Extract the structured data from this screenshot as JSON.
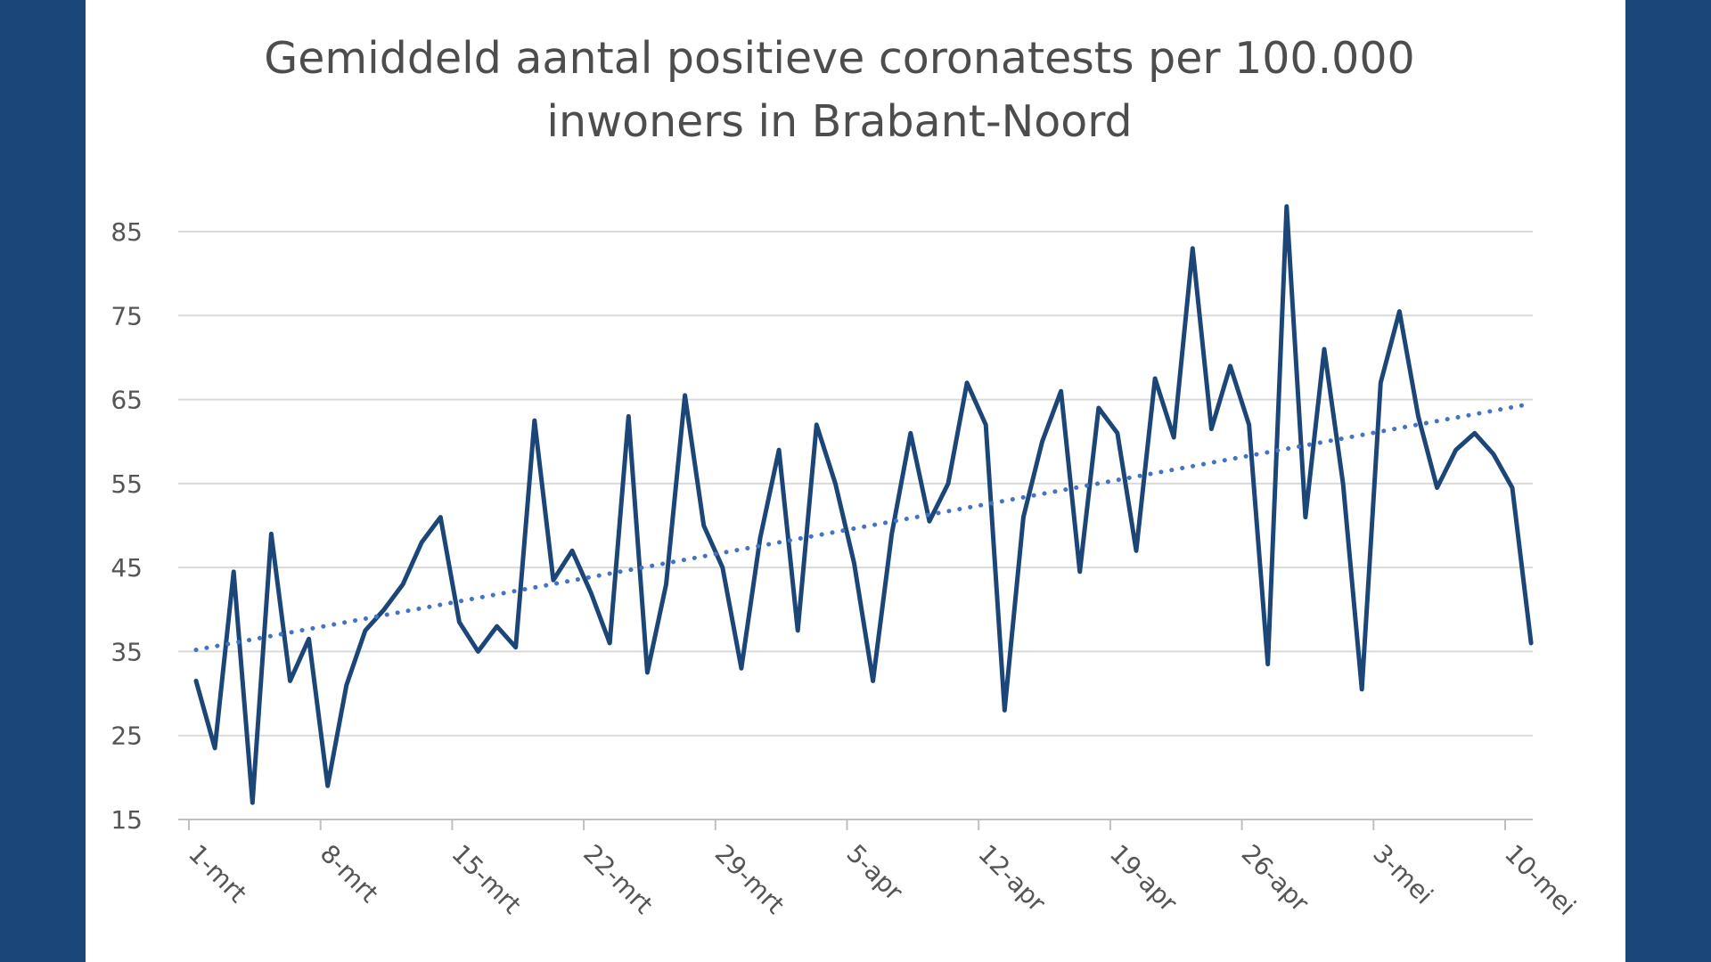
{
  "chart_data": {
    "type": "line",
    "title": "Gemiddeld aantal positieve coronatests per 100.000 inwoners in Brabant-Noord",
    "title_lines": [
      "Gemiddeld aantal positieve coronatests per 100.000",
      "inwoners in Brabant-Noord"
    ],
    "xlabel": "",
    "ylabel": "",
    "ylim": [
      15,
      85
    ],
    "yticks": [
      15,
      25,
      35,
      45,
      55,
      65,
      75,
      85
    ],
    "grid": true,
    "legend": "none",
    "x_tick_labels": [
      "1-mrt",
      "8-mrt",
      "15-mrt",
      "22-mrt",
      "29-mrt",
      "5-apr",
      "12-apr",
      "19-apr",
      "26-apr",
      "3-mei",
      "10-mei"
    ],
    "x_tick_days": [
      0,
      7,
      14,
      21,
      28,
      35,
      42,
      49,
      56,
      63,
      70
    ],
    "x_days_max": 72,
    "series": [
      {
        "line_color": "#1c4677",
        "style": "solid",
        "x_day": [
          0,
          1,
          2,
          3,
          4,
          5,
          6,
          7,
          8,
          9,
          10,
          11,
          12,
          13,
          14,
          15,
          16,
          17,
          18,
          19,
          20,
          21,
          22,
          23,
          24,
          25,
          26,
          27,
          28,
          29,
          30,
          31,
          32,
          33,
          34,
          35,
          36,
          37,
          38,
          39,
          40,
          41,
          42,
          43,
          44,
          45,
          46,
          47,
          48,
          49,
          50,
          51,
          52,
          53,
          54,
          55,
          56,
          57,
          58,
          59,
          60,
          61,
          62,
          63,
          64,
          65,
          66,
          67,
          68,
          69,
          70,
          71
        ],
        "values": [
          31.5,
          23.5,
          44.5,
          17,
          49,
          31.5,
          36.5,
          19,
          31,
          37.5,
          40,
          43,
          48,
          51,
          38.5,
          35,
          38,
          35.5,
          62.5,
          43.5,
          47,
          42,
          36,
          63,
          32.5,
          43,
          65.5,
          50,
          45,
          33,
          48.5,
          59,
          37.5,
          62,
          55,
          45.5,
          31.5,
          49,
          61,
          50.5,
          55,
          67,
          62,
          28,
          51,
          60,
          66,
          44.5,
          64,
          61,
          47,
          67.5,
          60.5,
          83,
          61.5,
          69,
          62,
          33.5,
          88,
          51,
          71,
          55,
          30.5,
          67,
          75.5,
          63,
          54.5,
          59,
          61,
          58.5,
          54.5,
          36
        ]
      },
      {
        "line_color": "#4472c4",
        "style": "dotted",
        "trend": "linear",
        "x_day": [
          0,
          71
        ],
        "values": [
          35.2,
          64.5
        ]
      }
    ]
  }
}
